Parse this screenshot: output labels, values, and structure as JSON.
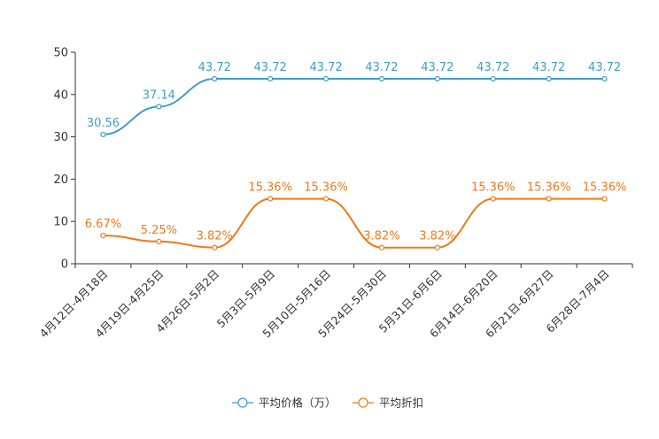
{
  "chart_data": {
    "type": "line",
    "categories": [
      "4月12日-4月18日",
      "4月19日-4月25日",
      "4月26日-5月2日",
      "5月3日-5月9日",
      "5月10日-5月16日",
      "5月24日-5月30日",
      "5月31日-6月6日",
      "6月14日-6月20日",
      "6月21日-6月27日",
      "6月28日-7月4日"
    ],
    "series": [
      {
        "name": "平均价格（万）",
        "color": "#3d9ccb",
        "values": [
          30.56,
          37.14,
          43.72,
          43.72,
          43.72,
          43.72,
          43.72,
          43.72,
          43.72,
          43.72
        ],
        "labels": [
          "30.56",
          "37.14",
          "43.72",
          "43.72",
          "43.72",
          "43.72",
          "43.72",
          "43.72",
          "43.72",
          "43.72"
        ]
      },
      {
        "name": "平均折扣",
        "color": "#f07818",
        "values": [
          6.67,
          5.25,
          3.82,
          15.36,
          15.36,
          3.82,
          3.82,
          15.36,
          15.36,
          15.36
        ],
        "labels": [
          "6.67%",
          "5.25%",
          "3.82%",
          "15.36%",
          "15.36%",
          "3.82%",
          "3.82%",
          "15.36%",
          "15.36%",
          "15.36%"
        ]
      }
    ],
    "yticks": [
      "0",
      "10",
      "20",
      "30",
      "40",
      "50"
    ],
    "ylim": [
      0,
      50
    ],
    "legend_position": "bottom-center",
    "title": "",
    "xlabel": "",
    "ylabel": ""
  }
}
